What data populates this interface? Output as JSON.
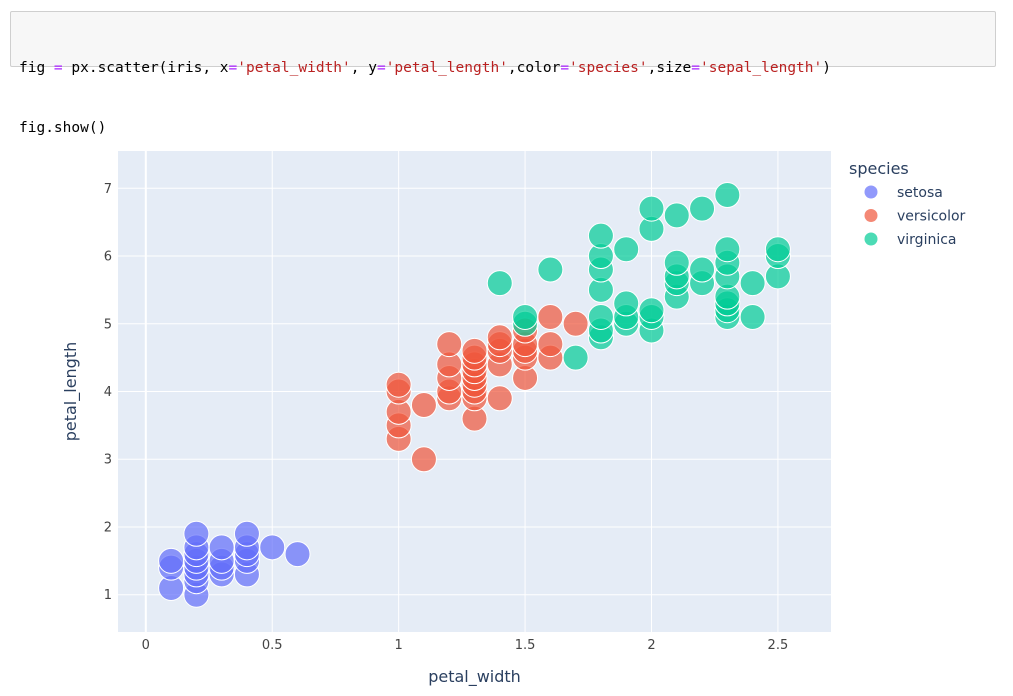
{
  "code": {
    "line1": [
      "fig ",
      "=",
      " px.scatter(iris, x",
      "=",
      "'petal_width'",
      ", y",
      "=",
      "'petal_length'",
      ",color",
      "=",
      "'species'",
      ",size",
      "=",
      "'sepal_length'",
      ")"
    ],
    "line1_kinds": [
      "txt",
      "op",
      "txt",
      "op",
      "str",
      "txt",
      "op",
      "str",
      "txt",
      "op",
      "str",
      "txt",
      "op",
      "str",
      "txt"
    ],
    "line2": "fig.show()"
  },
  "chart_data": {
    "type": "scatter",
    "xlabel": "petal_width",
    "ylabel": "petal_length",
    "xlim": [
      -0.11,
      2.71
    ],
    "ylim": [
      0.45,
      7.55
    ],
    "x_ticks": [
      0,
      0.5,
      1,
      1.5,
      2,
      2.5
    ],
    "x_tick_labels": [
      "0",
      "0.5",
      "1",
      "1.5",
      "2",
      "2.5"
    ],
    "y_ticks": [
      1,
      2,
      3,
      4,
      5,
      6,
      7
    ],
    "y_tick_labels": [
      "1",
      "2",
      "3",
      "4",
      "5",
      "6",
      "7"
    ],
    "grid": true,
    "legend_title": "species",
    "legend_position": "right",
    "series": [
      {
        "name": "setosa",
        "color": "#636efa",
        "points": [
          [
            0.1,
            1.1
          ],
          [
            0.1,
            1.4
          ],
          [
            0.1,
            1.5
          ],
          [
            0.2,
            1.0
          ],
          [
            0.2,
            1.2
          ],
          [
            0.2,
            1.3
          ],
          [
            0.2,
            1.4
          ],
          [
            0.2,
            1.5
          ],
          [
            0.2,
            1.6
          ],
          [
            0.2,
            1.7
          ],
          [
            0.2,
            1.9
          ],
          [
            0.3,
            1.3
          ],
          [
            0.3,
            1.4
          ],
          [
            0.3,
            1.5
          ],
          [
            0.3,
            1.7
          ],
          [
            0.4,
            1.3
          ],
          [
            0.4,
            1.5
          ],
          [
            0.4,
            1.6
          ],
          [
            0.4,
            1.7
          ],
          [
            0.4,
            1.9
          ],
          [
            0.5,
            1.7
          ],
          [
            0.6,
            1.6
          ]
        ]
      },
      {
        "name": "versicolor",
        "color": "#ef553b",
        "points": [
          [
            1.0,
            3.3
          ],
          [
            1.0,
            3.5
          ],
          [
            1.0,
            3.7
          ],
          [
            1.0,
            4.0
          ],
          [
            1.0,
            4.1
          ],
          [
            1.1,
            3.0
          ],
          [
            1.1,
            3.8
          ],
          [
            1.2,
            3.9
          ],
          [
            1.2,
            4.0
          ],
          [
            1.2,
            4.2
          ],
          [
            1.2,
            4.4
          ],
          [
            1.2,
            4.7
          ],
          [
            1.3,
            3.6
          ],
          [
            1.3,
            3.9
          ],
          [
            1.3,
            4.0
          ],
          [
            1.3,
            4.1
          ],
          [
            1.3,
            4.2
          ],
          [
            1.3,
            4.3
          ],
          [
            1.3,
            4.4
          ],
          [
            1.3,
            4.5
          ],
          [
            1.3,
            4.6
          ],
          [
            1.4,
            3.9
          ],
          [
            1.4,
            4.4
          ],
          [
            1.4,
            4.6
          ],
          [
            1.4,
            4.7
          ],
          [
            1.4,
            4.8
          ],
          [
            1.5,
            4.2
          ],
          [
            1.5,
            4.5
          ],
          [
            1.5,
            4.6
          ],
          [
            1.5,
            4.7
          ],
          [
            1.5,
            4.9
          ],
          [
            1.6,
            4.5
          ],
          [
            1.6,
            4.7
          ],
          [
            1.6,
            5.1
          ],
          [
            1.7,
            5.0
          ]
        ]
      },
      {
        "name": "virginica",
        "color": "#00cc96",
        "points": [
          [
            1.4,
            5.6
          ],
          [
            1.5,
            5.0
          ],
          [
            1.5,
            5.1
          ],
          [
            1.6,
            5.8
          ],
          [
            1.7,
            4.5
          ],
          [
            1.8,
            4.8
          ],
          [
            1.8,
            4.9
          ],
          [
            1.8,
            5.1
          ],
          [
            1.8,
            5.5
          ],
          [
            1.8,
            5.8
          ],
          [
            1.8,
            6.0
          ],
          [
            1.8,
            6.3
          ],
          [
            1.9,
            5.0
          ],
          [
            1.9,
            5.1
          ],
          [
            1.9,
            5.3
          ],
          [
            1.9,
            6.1
          ],
          [
            2.0,
            4.9
          ],
          [
            2.0,
            5.1
          ],
          [
            2.0,
            5.2
          ],
          [
            2.0,
            6.4
          ],
          [
            2.0,
            6.7
          ],
          [
            2.1,
            5.4
          ],
          [
            2.1,
            5.6
          ],
          [
            2.1,
            5.7
          ],
          [
            2.1,
            5.9
          ],
          [
            2.1,
            6.6
          ],
          [
            2.2,
            5.6
          ],
          [
            2.2,
            5.8
          ],
          [
            2.2,
            6.7
          ],
          [
            2.3,
            5.1
          ],
          [
            2.3,
            5.2
          ],
          [
            2.3,
            5.3
          ],
          [
            2.3,
            5.4
          ],
          [
            2.3,
            5.7
          ],
          [
            2.3,
            5.9
          ],
          [
            2.3,
            6.1
          ],
          [
            2.3,
            6.9
          ],
          [
            2.4,
            5.1
          ],
          [
            2.4,
            5.6
          ],
          [
            2.5,
            5.7
          ],
          [
            2.5,
            6.0
          ],
          [
            2.5,
            6.1
          ]
        ]
      }
    ]
  }
}
